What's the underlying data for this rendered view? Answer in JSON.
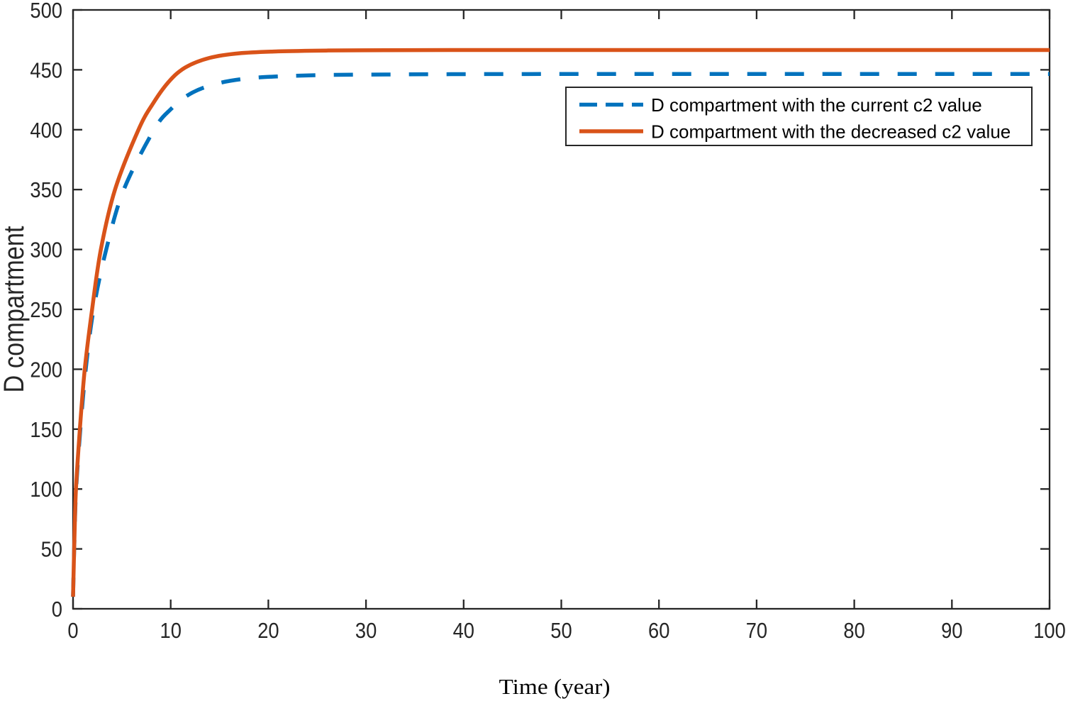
{
  "figure": {
    "background": "#ffffff"
  },
  "chart_data": {
    "type": "line",
    "title": "",
    "xlabel": "Time (year)",
    "ylabel": "D compartment",
    "xlim": [
      0,
      100
    ],
    "ylim": [
      0,
      500
    ],
    "x_ticks": [
      0,
      10,
      20,
      30,
      40,
      50,
      60,
      70,
      80,
      90,
      100
    ],
    "y_ticks": [
      0,
      50,
      100,
      150,
      200,
      250,
      300,
      350,
      400,
      450,
      500
    ],
    "grid": false,
    "axis_color": "#262626",
    "legend": {
      "position": "upper-right-inside",
      "background": "#ffffff",
      "border_color": "#262626"
    },
    "series": [
      {
        "name": "D compartment with the current c2 value",
        "color": "#0072BD",
        "line_style": "dashed",
        "points": [
          [
            0,
            10
          ],
          [
            0.15,
            60
          ],
          [
            0.32,
            100
          ],
          [
            0.75,
            150
          ],
          [
            1.3,
            200
          ],
          [
            2.1,
            250
          ],
          [
            3.4,
            300
          ],
          [
            5.2,
            350
          ],
          [
            8.3,
            400
          ],
          [
            10,
            417
          ],
          [
            12,
            430
          ],
          [
            14.5,
            438
          ],
          [
            17.5,
            442.5
          ],
          [
            21,
            444.5
          ],
          [
            26,
            445.7
          ],
          [
            32,
            446.1
          ],
          [
            40,
            446.4
          ],
          [
            50,
            446.5
          ],
          [
            60,
            446.5
          ],
          [
            70,
            446.5
          ],
          [
            80,
            446.5
          ],
          [
            90,
            446.5
          ],
          [
            100,
            446.5
          ]
        ]
      },
      {
        "name": "D compartment with the decreased c2 value",
        "color": "#D95319",
        "line_style": "solid",
        "points": [
          [
            0,
            10
          ],
          [
            0.15,
            62
          ],
          [
            0.3,
            100
          ],
          [
            0.7,
            150
          ],
          [
            1.2,
            200
          ],
          [
            1.95,
            250
          ],
          [
            2.85,
            300
          ],
          [
            4.3,
            350
          ],
          [
            6.7,
            400
          ],
          [
            8.2,
            422
          ],
          [
            9.8,
            440
          ],
          [
            11.5,
            452
          ],
          [
            14,
            460
          ],
          [
            17,
            463.8
          ],
          [
            21,
            465.4
          ],
          [
            26,
            466.1
          ],
          [
            32,
            466.4
          ],
          [
            40,
            466.5
          ],
          [
            50,
            466.5
          ],
          [
            60,
            466.5
          ],
          [
            70,
            466.5
          ],
          [
            80,
            466.5
          ],
          [
            90,
            466.5
          ],
          [
            100,
            466.5
          ]
        ]
      }
    ]
  }
}
